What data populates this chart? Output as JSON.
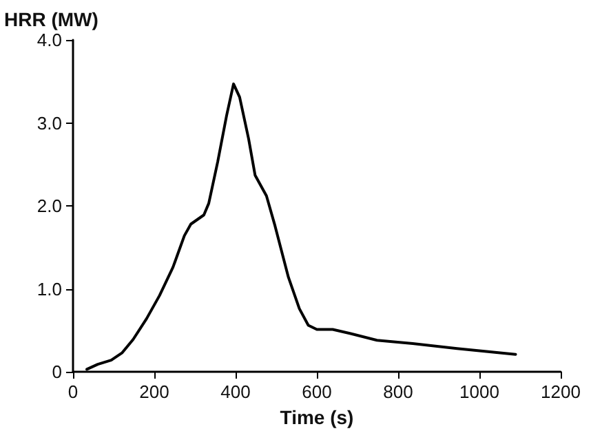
{
  "chart_data": {
    "type": "line",
    "xlabel": "Time (s)",
    "ylabel": "HRR (MW)",
    "x": [
      34,
      61,
      94,
      121,
      148,
      181,
      213,
      246,
      274,
      290,
      322,
      334,
      356,
      378,
      395,
      410,
      432,
      448,
      476,
      497,
      530,
      557,
      579,
      600,
      639,
      683,
      748,
      836,
      945,
      1089
    ],
    "series": [
      {
        "color": "#000000",
        "values": [
          0.03,
          0.09,
          0.14,
          0.23,
          0.39,
          0.64,
          0.92,
          1.26,
          1.64,
          1.78,
          1.89,
          2.03,
          2.53,
          3.09,
          3.47,
          3.31,
          2.81,
          2.37,
          2.12,
          1.76,
          1.14,
          0.76,
          0.56,
          0.51,
          0.51,
          0.46,
          0.38,
          0.34,
          0.28,
          0.21
        ]
      }
    ],
    "xlim": [
      0,
      1200
    ],
    "xticks": [
      0,
      200,
      400,
      600,
      800,
      1000,
      1200
    ],
    "ylim": [
      0,
      4
    ],
    "yticks": [
      {
        "value": 0,
        "label": "0"
      },
      {
        "value": 1,
        "label": "1.0"
      },
      {
        "value": 2,
        "label": "2.0"
      },
      {
        "value": 3,
        "label": "3.0"
      },
      {
        "value": 4,
        "label": "4.0"
      }
    ],
    "marker": "none",
    "line_style": "solid"
  }
}
